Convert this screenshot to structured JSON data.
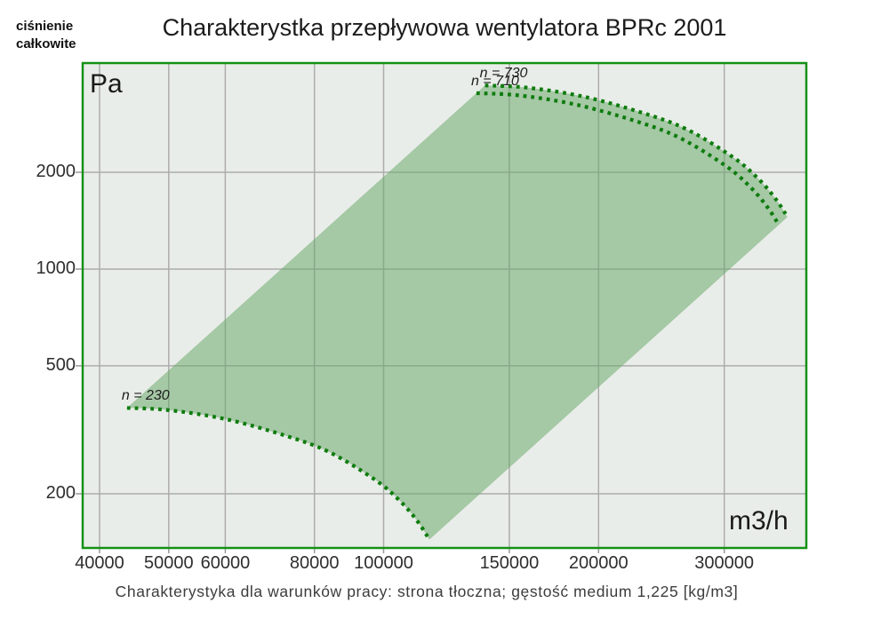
{
  "header": {
    "pressure_label_line1": "ciśnienie",
    "pressure_label_line2": "całkowite",
    "title": "Charakterystka przepływowa wentylatora BPRc 2001"
  },
  "footer": {
    "caption": "Charakterystyka dla warunków pracy: strona tłoczna; gęstość medium 1,225 [kg/m3]"
  },
  "chart_data": {
    "type": "area",
    "title": "Charakterystka przepływowa wentylatora BPRc 2001",
    "xlabel": "m3/h",
    "ylabel": "Pa",
    "x_scale": "log",
    "y_scale": "log",
    "xlim": [
      37900,
      391000
    ],
    "ylim": [
      136,
      4370
    ],
    "x_ticks": [
      40000,
      50000,
      60000,
      80000,
      100000,
      150000,
      200000,
      300000
    ],
    "y_ticks": [
      2000,
      1000,
      500,
      200
    ],
    "grid": true,
    "envelope": {
      "description": "operating area of fan between min and max speed curves",
      "between": [
        "n = 230",
        "n = 730"
      ]
    },
    "series": [
      {
        "name": "n = 230",
        "rpm": 230,
        "style": "dotted",
        "points": [
          [
            43700,
            370
          ],
          [
            50100,
            364
          ],
          [
            60200,
            341
          ],
          [
            72600,
            304
          ],
          [
            83800,
            270
          ],
          [
            97300,
            221
          ],
          [
            105400,
            190
          ],
          [
            111600,
            164
          ],
          [
            115900,
            144
          ]
        ]
      },
      {
        "name": "n = 710",
        "rpm": 710,
        "style": "dotted",
        "points": [
          [
            134900,
            3526
          ],
          [
            154700,
            3469
          ],
          [
            185800,
            3250
          ],
          [
            224100,
            2897
          ],
          [
            258700,
            2573
          ],
          [
            300400,
            2106
          ],
          [
            325400,
            1811
          ],
          [
            344500,
            1563
          ],
          [
            357800,
            1372
          ]
        ]
      },
      {
        "name": "n = 730",
        "rpm": 730,
        "style": "dotted",
        "points": [
          [
            138700,
            3727
          ],
          [
            159000,
            3667
          ],
          [
            191100,
            3435
          ],
          [
            230400,
            3062
          ],
          [
            266000,
            2720
          ],
          [
            308800,
            2226
          ],
          [
            334500,
            1914
          ],
          [
            354200,
            1652
          ],
          [
            367900,
            1451
          ]
        ]
      }
    ],
    "colors": {
      "plot_bg": "#e9ede9",
      "grid": "#acacac",
      "frame": "#149114",
      "fill": "rgba(110,170,110,0.55)",
      "curve": "#0e7c0e"
    }
  }
}
